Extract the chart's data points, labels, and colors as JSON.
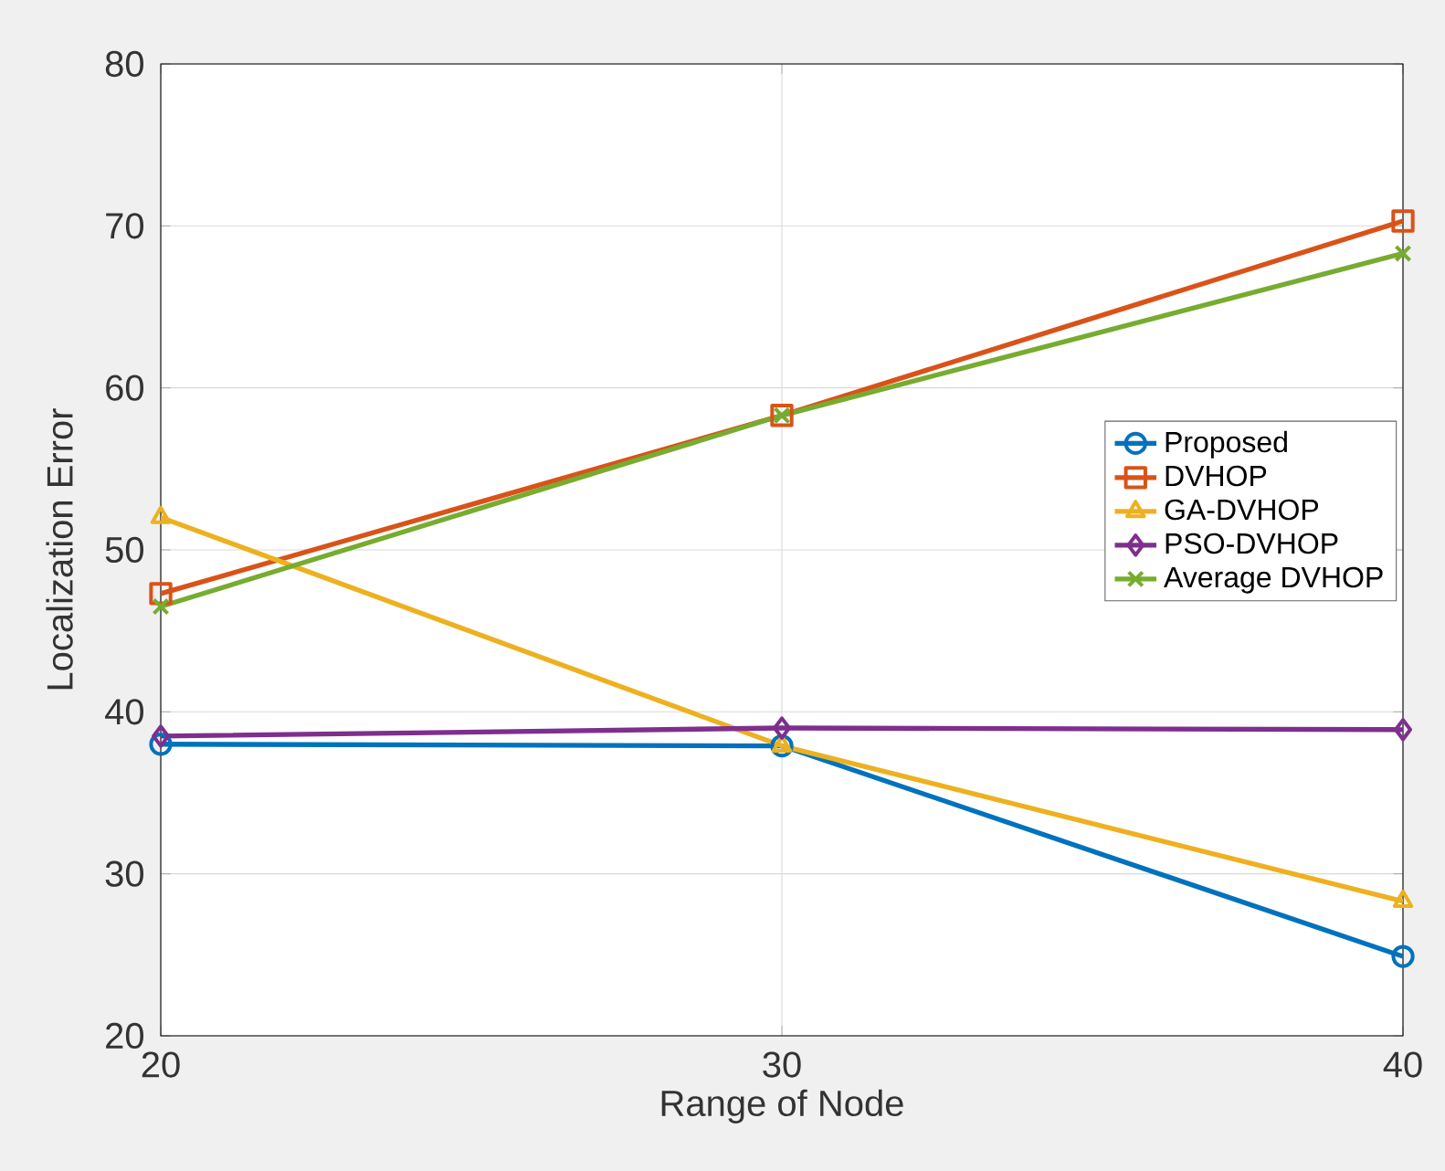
{
  "chart_data": {
    "type": "line",
    "xlabel": "Range of Node",
    "ylabel": "Localization Error",
    "x": [
      20,
      30,
      40
    ],
    "xlim": [
      20,
      40
    ],
    "xticks": [
      20,
      30,
      40
    ],
    "ylim": [
      20,
      80
    ],
    "yticks": [
      20,
      30,
      40,
      50,
      60,
      70,
      80
    ],
    "grid": true,
    "legend": "right",
    "line_style": "solid",
    "series": [
      {
        "name": "Proposed",
        "color": "#0072bd",
        "marker": "circle",
        "values": [
          38.0,
          37.9,
          24.9
        ]
      },
      {
        "name": "DVHOP",
        "color": "#d95319",
        "marker": "square",
        "values": [
          47.3,
          58.3,
          70.3
        ]
      },
      {
        "name": "GA-DVHOP",
        "color": "#edb120",
        "marker": "triangle",
        "values": [
          52.0,
          37.9,
          28.3
        ]
      },
      {
        "name": "PSO-DVHOP",
        "color": "#7e2f8e",
        "marker": "diamond",
        "values": [
          38.5,
          39.0,
          38.9
        ]
      },
      {
        "name": "Average DVHOP",
        "color": "#77ac30",
        "marker": "cross",
        "values": [
          46.5,
          58.3,
          68.3
        ]
      }
    ]
  }
}
